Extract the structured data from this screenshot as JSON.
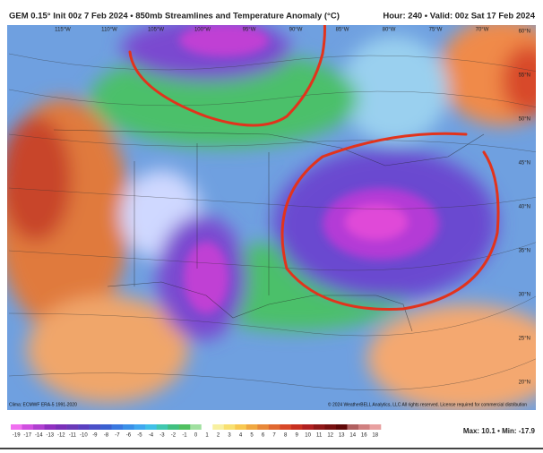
{
  "header": {
    "title": "GEM 0.15° Init 00z 7 Feb 2024 • 850mb Streamlines and Temperature Anomaly (°C)",
    "valid": "Hour: 240 • Valid: 00z Sat 17 Feb 2024"
  },
  "map": {
    "lat_labels": [
      "60°N",
      "55°N",
      "50°N",
      "45°N",
      "40°N",
      "35°N",
      "30°N",
      "25°N",
      "20°N"
    ],
    "lon_labels": [
      "115°W",
      "110°W",
      "105°W",
      "100°W",
      "95°W",
      "90°W",
      "85°W",
      "80°W",
      "75°W",
      "70°W"
    ],
    "clima": "Clima: ECMWF ERA-5 1991-2020",
    "copyright": "© 2024 WeatherBELL Analytics, LLC  All rights reserved. License required for commercial distribution"
  },
  "colorbar": {
    "labels": [
      -19,
      -17,
      -14,
      -13,
      -12,
      -11,
      -10,
      -9,
      -8,
      -7,
      -6,
      -5,
      -4,
      -3,
      -2,
      -1,
      0,
      1,
      2,
      3,
      4,
      5,
      6,
      7,
      8,
      9,
      10,
      11,
      12,
      13,
      14,
      16,
      18
    ],
    "extremes": "Max: 10.1 • Min: -17.9"
  }
}
